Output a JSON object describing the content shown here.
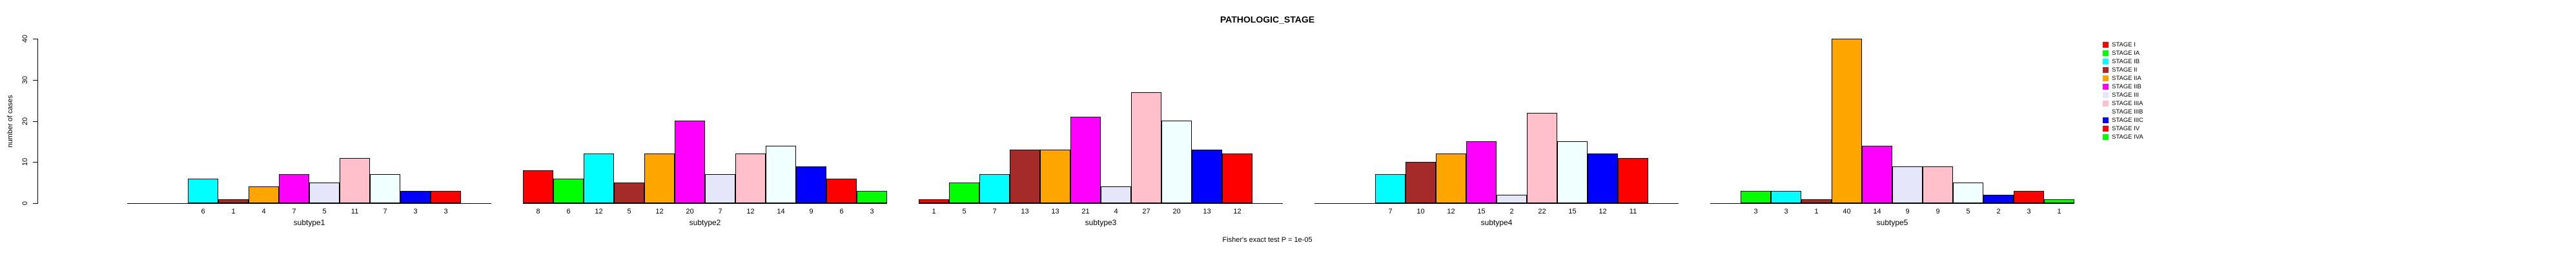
{
  "title": "PATHOLOGIC_STAGE",
  "caption": "Fisher's exact test P = 1e-05",
  "y_axis": {
    "label": "number of cases",
    "ticks": [
      0,
      10,
      20,
      30,
      40
    ]
  },
  "legend": {
    "entries": [
      {
        "label": "STAGE I",
        "color": "#FF0000"
      },
      {
        "label": "STAGE IA",
        "color": "#00FF00"
      },
      {
        "label": "STAGE IB",
        "color": "#00FFFF"
      },
      {
        "label": "STAGE II",
        "color": "#A52A2A"
      },
      {
        "label": "STAGE IIA",
        "color": "#FFA500"
      },
      {
        "label": "STAGE IIB",
        "color": "#FF00FF"
      },
      {
        "label": "STAGE III",
        "color": "#E6E6FA"
      },
      {
        "label": "STAGE IIIA",
        "color": "#FFC0CB"
      },
      {
        "label": "STAGE IIIB",
        "color": "#F0FFFF"
      },
      {
        "label": "STAGE IIIC",
        "color": "#0000FF"
      },
      {
        "label": "STAGE IV",
        "color": "#FF0000"
      },
      {
        "label": "STAGE IVA",
        "color": "#00FF00"
      }
    ]
  },
  "chart_data": {
    "type": "bar",
    "layout": "grouped",
    "title": "PATHOLOGIC_STAGE",
    "xlabel": "",
    "ylabel": "number of cases",
    "ylim": [
      0,
      40
    ],
    "grid": false,
    "legend_position": "right",
    "categories": [
      "subtype1",
      "subtype2",
      "subtype3",
      "subtype4",
      "subtype5"
    ],
    "series": [
      {
        "name": "STAGE I",
        "color": "#FF0000",
        "values": [
          0,
          8,
          1,
          0,
          0
        ]
      },
      {
        "name": "STAGE IA",
        "color": "#00FF00",
        "values": [
          0,
          6,
          5,
          0,
          3
        ]
      },
      {
        "name": "STAGE IB",
        "color": "#00FFFF",
        "values": [
          6,
          12,
          7,
          7,
          3
        ]
      },
      {
        "name": "STAGE II",
        "color": "#A52A2A",
        "values": [
          1,
          5,
          13,
          10,
          1
        ]
      },
      {
        "name": "STAGE IIA",
        "color": "#FFA500",
        "values": [
          4,
          12,
          13,
          12,
          40
        ]
      },
      {
        "name": "STAGE IIB",
        "color": "#FF00FF",
        "values": [
          7,
          20,
          21,
          15,
          14
        ]
      },
      {
        "name": "STAGE III",
        "color": "#E6E6FA",
        "values": [
          5,
          7,
          4,
          2,
          9
        ]
      },
      {
        "name": "STAGE IIIA",
        "color": "#FFC0CB",
        "values": [
          11,
          12,
          27,
          22,
          9
        ]
      },
      {
        "name": "STAGE IIIB",
        "color": "#F0FFFF",
        "values": [
          7,
          14,
          20,
          15,
          5
        ]
      },
      {
        "name": "STAGE IIIC",
        "color": "#0000FF",
        "values": [
          3,
          9,
          13,
          12,
          2
        ]
      },
      {
        "name": "STAGE IV",
        "color": "#FF0000",
        "values": [
          3,
          6,
          12,
          11,
          3
        ]
      },
      {
        "name": "STAGE IVA",
        "color": "#00FF00",
        "values": [
          0,
          3,
          0,
          0,
          1
        ]
      }
    ],
    "bar_value_labels_shown": true,
    "zero_bars_hidden": true
  }
}
